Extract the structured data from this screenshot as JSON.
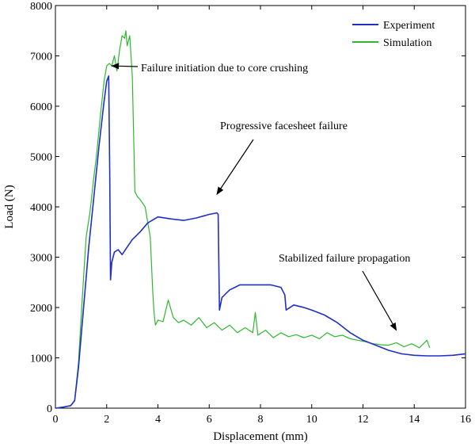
{
  "chart_data": {
    "type": "line",
    "title": "",
    "xlabel": "Displacement (mm)",
    "ylabel": "Load (N)",
    "xlim": [
      0,
      16
    ],
    "ylim": [
      0,
      8000
    ],
    "xticks": [
      0,
      2,
      4,
      6,
      8,
      10,
      12,
      14,
      16
    ],
    "yticks": [
      0,
      1000,
      2000,
      3000,
      4000,
      5000,
      6000,
      7000,
      8000
    ],
    "grid": false,
    "legend_position": "top-right",
    "series": [
      {
        "name": "Experiment",
        "color": "#1f2fc8",
        "x": [
          0,
          0.3,
          0.6,
          0.75,
          0.9,
          1.1,
          1.3,
          1.5,
          1.7,
          1.9,
          2.0,
          2.08,
          2.12,
          2.15,
          2.2,
          2.3,
          2.45,
          2.6,
          2.8,
          3.0,
          3.3,
          3.6,
          4.0,
          4.5,
          5.0,
          5.5,
          6.0,
          6.3,
          6.35,
          6.4,
          6.5,
          6.8,
          7.2,
          7.8,
          8.4,
          8.8,
          8.95,
          9.0,
          9.3,
          9.7,
          10.0,
          10.5,
          11.0,
          11.5,
          12.0,
          12.5,
          13.0,
          13.5,
          14.0,
          14.5,
          15.0,
          15.5,
          16.0
        ],
        "y": [
          0,
          20,
          50,
          150,
          800,
          2000,
          3200,
          4200,
          5200,
          6100,
          6500,
          6600,
          4700,
          2550,
          2900,
          3100,
          3150,
          3050,
          3200,
          3350,
          3500,
          3680,
          3800,
          3760,
          3730,
          3780,
          3850,
          3880,
          3850,
          1950,
          2200,
          2350,
          2450,
          2450,
          2450,
          2400,
          2250,
          1950,
          2050,
          2000,
          1950,
          1850,
          1700,
          1500,
          1350,
          1250,
          1150,
          1080,
          1050,
          1040,
          1040,
          1050,
          1080
        ]
      },
      {
        "name": "Simulation",
        "color": "#2fb82f",
        "x": [
          0,
          0.3,
          0.6,
          0.75,
          0.9,
          1.05,
          1.2,
          1.35,
          1.5,
          1.6,
          1.75,
          1.9,
          2.0,
          2.1,
          2.2,
          2.3,
          2.4,
          2.5,
          2.6,
          2.7,
          2.75,
          2.8,
          2.9,
          3.0,
          3.05,
          3.1,
          3.2,
          3.3,
          3.5,
          3.7,
          3.8,
          3.85,
          3.9,
          3.95,
          4.0,
          4.2,
          4.4,
          4.6,
          4.8,
          5.0,
          5.3,
          5.6,
          5.9,
          6.2,
          6.5,
          6.8,
          7.1,
          7.4,
          7.7,
          7.8,
          7.9,
          8.2,
          8.5,
          8.8,
          9.1,
          9.4,
          9.7,
          10.0,
          10.3,
          10.6,
          10.9,
          11.2,
          11.5,
          11.8,
          12.1,
          12.4,
          12.7,
          13.0,
          13.3,
          13.6,
          13.9,
          14.2,
          14.4,
          14.5,
          14.6
        ],
        "y": [
          0,
          20,
          50,
          160,
          900,
          2200,
          3400,
          3900,
          4600,
          5000,
          5800,
          6500,
          6800,
          6850,
          6800,
          7000,
          6700,
          7100,
          7400,
          7350,
          7500,
          7200,
          7400,
          6600,
          5500,
          4300,
          4200,
          4150,
          4000,
          3400,
          2300,
          1900,
          1650,
          1700,
          1750,
          1720,
          2150,
          1800,
          1700,
          1750,
          1650,
          1800,
          1600,
          1700,
          1550,
          1650,
          1500,
          1600,
          1500,
          1900,
          1450,
          1550,
          1400,
          1500,
          1420,
          1460,
          1400,
          1450,
          1380,
          1500,
          1420,
          1450,
          1380,
          1350,
          1320,
          1280,
          1260,
          1250,
          1300,
          1220,
          1280,
          1200,
          1300,
          1350,
          1200
        ]
      }
    ],
    "annotations": [
      {
        "text": "Failure initiation due to core crushing",
        "arrow_to": [
          2.2,
          6800
        ]
      },
      {
        "text": "Progressive facesheet failure",
        "arrow_to": [
          6.3,
          4250
        ]
      },
      {
        "text": "Stabilized failure propagation",
        "arrow_to": [
          13.3,
          1550
        ]
      }
    ]
  }
}
